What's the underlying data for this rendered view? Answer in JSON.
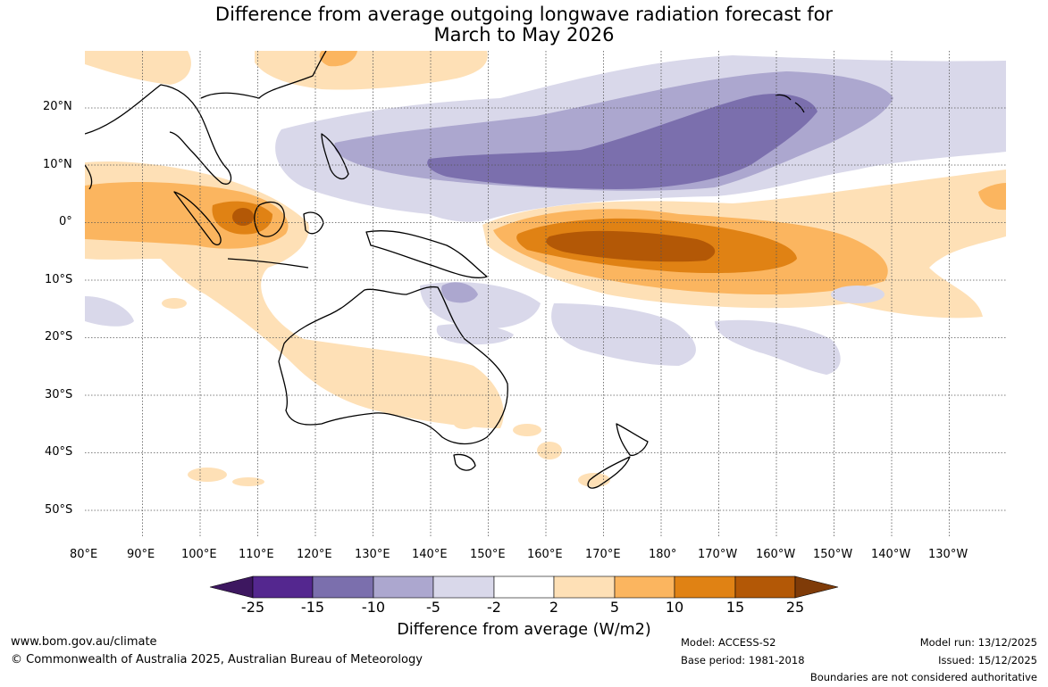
{
  "title": {
    "line1": "Difference from average outgoing longwave radiation forecast for",
    "line2": "March to May 2026"
  },
  "map": {
    "lat_labels": [
      "20°N",
      "10°N",
      "0°",
      "10°S",
      "20°S",
      "30°S",
      "40°S",
      "50°S"
    ],
    "lon_labels": [
      "80°E",
      "90°E",
      "100°E",
      "110°E",
      "120°E",
      "130°E",
      "140°E",
      "150°E",
      "160°E",
      "170°E",
      "180°",
      "170°W",
      "160°W",
      "150°W",
      "140°W",
      "130°W"
    ]
  },
  "legend": {
    "labels": [
      "-25",
      "-15",
      "-10",
      "-5",
      "-2",
      "2",
      "5",
      "10",
      "15",
      "25"
    ],
    "colors": [
      "#3d1760",
      "#54278f",
      "#7b6fad",
      "#aca7cf",
      "#d9d8ea",
      "#ffffff",
      "#fee0b6",
      "#fbb55f",
      "#e08214",
      "#b35806",
      "#7f3b08"
    ],
    "title": "Difference from average (W/m2)"
  },
  "footer": {
    "website": "www.bom.gov.au/climate",
    "copyright": "© Commonwealth of Australia 2025, Australian Bureau of Meteorology",
    "model": "Model: ACCESS-S2",
    "base_period": "Base period: 1981-2018",
    "model_run": "Model run: 13/12/2025",
    "issued": "Issued: 15/12/2025",
    "disclaimer": "Boundaries are not considered authoritative"
  }
}
